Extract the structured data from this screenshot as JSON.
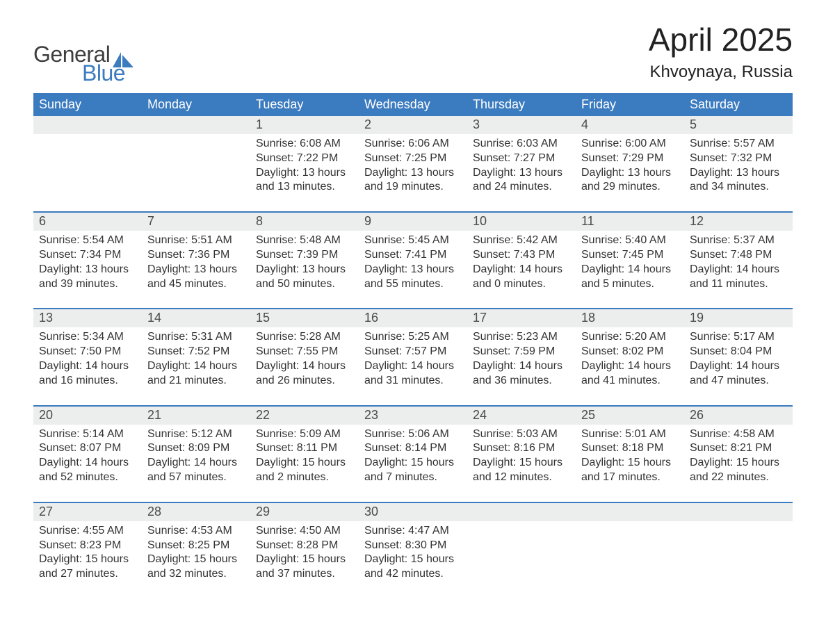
{
  "brand": {
    "line1": "General",
    "line2": "Blue",
    "sail_color": "#3b7bbf",
    "text_color": "#3e3e3e"
  },
  "title": "April 2025",
  "location": "Khvoynaya, Russia",
  "colors": {
    "header_bg": "#3b7bbf",
    "header_text": "#ffffff",
    "daynum_bg": "#eceded",
    "row_border": "#3b7bbf",
    "body_text": "#333333",
    "page_bg": "#ffffff"
  },
  "typography": {
    "title_fontsize": 46,
    "location_fontsize": 24,
    "header_fontsize": 18,
    "cell_fontsize": 16
  },
  "weekdays": [
    "Sunday",
    "Monday",
    "Tuesday",
    "Wednesday",
    "Thursday",
    "Friday",
    "Saturday"
  ],
  "weeks": [
    [
      null,
      null,
      {
        "d": "1",
        "sunrise": "6:08 AM",
        "sunset": "7:22 PM",
        "daylight": "13 hours and 13 minutes."
      },
      {
        "d": "2",
        "sunrise": "6:06 AM",
        "sunset": "7:25 PM",
        "daylight": "13 hours and 19 minutes."
      },
      {
        "d": "3",
        "sunrise": "6:03 AM",
        "sunset": "7:27 PM",
        "daylight": "13 hours and 24 minutes."
      },
      {
        "d": "4",
        "sunrise": "6:00 AM",
        "sunset": "7:29 PM",
        "daylight": "13 hours and 29 minutes."
      },
      {
        "d": "5",
        "sunrise": "5:57 AM",
        "sunset": "7:32 PM",
        "daylight": "13 hours and 34 minutes."
      }
    ],
    [
      {
        "d": "6",
        "sunrise": "5:54 AM",
        "sunset": "7:34 PM",
        "daylight": "13 hours and 39 minutes."
      },
      {
        "d": "7",
        "sunrise": "5:51 AM",
        "sunset": "7:36 PM",
        "daylight": "13 hours and 45 minutes."
      },
      {
        "d": "8",
        "sunrise": "5:48 AM",
        "sunset": "7:39 PM",
        "daylight": "13 hours and 50 minutes."
      },
      {
        "d": "9",
        "sunrise": "5:45 AM",
        "sunset": "7:41 PM",
        "daylight": "13 hours and 55 minutes."
      },
      {
        "d": "10",
        "sunrise": "5:42 AM",
        "sunset": "7:43 PM",
        "daylight": "14 hours and 0 minutes."
      },
      {
        "d": "11",
        "sunrise": "5:40 AM",
        "sunset": "7:45 PM",
        "daylight": "14 hours and 5 minutes."
      },
      {
        "d": "12",
        "sunrise": "5:37 AM",
        "sunset": "7:48 PM",
        "daylight": "14 hours and 11 minutes."
      }
    ],
    [
      {
        "d": "13",
        "sunrise": "5:34 AM",
        "sunset": "7:50 PM",
        "daylight": "14 hours and 16 minutes."
      },
      {
        "d": "14",
        "sunrise": "5:31 AM",
        "sunset": "7:52 PM",
        "daylight": "14 hours and 21 minutes."
      },
      {
        "d": "15",
        "sunrise": "5:28 AM",
        "sunset": "7:55 PM",
        "daylight": "14 hours and 26 minutes."
      },
      {
        "d": "16",
        "sunrise": "5:25 AM",
        "sunset": "7:57 PM",
        "daylight": "14 hours and 31 minutes."
      },
      {
        "d": "17",
        "sunrise": "5:23 AM",
        "sunset": "7:59 PM",
        "daylight": "14 hours and 36 minutes."
      },
      {
        "d": "18",
        "sunrise": "5:20 AM",
        "sunset": "8:02 PM",
        "daylight": "14 hours and 41 minutes."
      },
      {
        "d": "19",
        "sunrise": "5:17 AM",
        "sunset": "8:04 PM",
        "daylight": "14 hours and 47 minutes."
      }
    ],
    [
      {
        "d": "20",
        "sunrise": "5:14 AM",
        "sunset": "8:07 PM",
        "daylight": "14 hours and 52 minutes."
      },
      {
        "d": "21",
        "sunrise": "5:12 AM",
        "sunset": "8:09 PM",
        "daylight": "14 hours and 57 minutes."
      },
      {
        "d": "22",
        "sunrise": "5:09 AM",
        "sunset": "8:11 PM",
        "daylight": "15 hours and 2 minutes."
      },
      {
        "d": "23",
        "sunrise": "5:06 AM",
        "sunset": "8:14 PM",
        "daylight": "15 hours and 7 minutes."
      },
      {
        "d": "24",
        "sunrise": "5:03 AM",
        "sunset": "8:16 PM",
        "daylight": "15 hours and 12 minutes."
      },
      {
        "d": "25",
        "sunrise": "5:01 AM",
        "sunset": "8:18 PM",
        "daylight": "15 hours and 17 minutes."
      },
      {
        "d": "26",
        "sunrise": "4:58 AM",
        "sunset": "8:21 PM",
        "daylight": "15 hours and 22 minutes."
      }
    ],
    [
      {
        "d": "27",
        "sunrise": "4:55 AM",
        "sunset": "8:23 PM",
        "daylight": "15 hours and 27 minutes."
      },
      {
        "d": "28",
        "sunrise": "4:53 AM",
        "sunset": "8:25 PM",
        "daylight": "15 hours and 32 minutes."
      },
      {
        "d": "29",
        "sunrise": "4:50 AM",
        "sunset": "8:28 PM",
        "daylight": "15 hours and 37 minutes."
      },
      {
        "d": "30",
        "sunrise": "4:47 AM",
        "sunset": "8:30 PM",
        "daylight": "15 hours and 42 minutes."
      },
      null,
      null,
      null
    ]
  ],
  "labels": {
    "sunrise": "Sunrise: ",
    "sunset": "Sunset: ",
    "daylight": "Daylight: "
  }
}
